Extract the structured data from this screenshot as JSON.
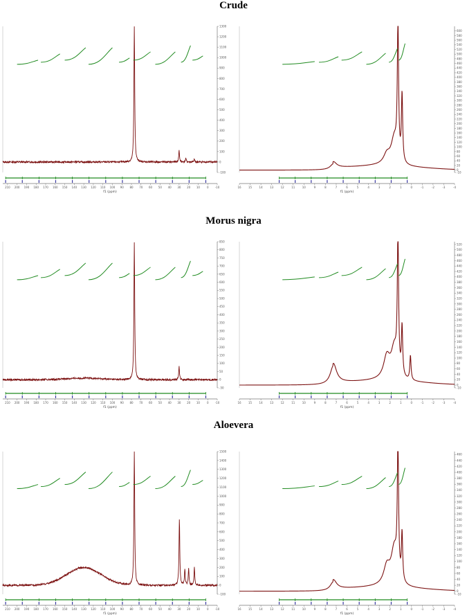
{
  "chart_data": [
    {
      "type": "line",
      "group": "Crude",
      "xlabel": "f1 (ppm)",
      "x_reversed": true,
      "xlim": [
        -10,
        215
      ],
      "ylim": [
        -100,
        1300
      ],
      "x_ticks": [
        210,
        200,
        190,
        180,
        170,
        160,
        150,
        140,
        130,
        120,
        110,
        100,
        90,
        80,
        70,
        60,
        50,
        40,
        30,
        20,
        10,
        0,
        -10
      ],
      "y_ticks": [
        1300,
        1200,
        1100,
        1000,
        900,
        800,
        700,
        600,
        500,
        400,
        300,
        200,
        100,
        0,
        -100
      ],
      "peaks": [
        [
          77,
          1300
        ],
        [
          30,
          110
        ],
        [
          23,
          35
        ],
        [
          14,
          25
        ]
      ],
      "baseline": [],
      "bumps": []
    },
    {
      "type": "line",
      "group": "Crude",
      "xlabel": "f1 (ppm)",
      "x_reversed": true,
      "xlim": [
        -4,
        16
      ],
      "ylim": [
        -10,
        620
      ],
      "x_ticks": [
        16,
        15,
        14,
        13,
        12,
        11,
        10,
        9,
        8,
        7,
        6,
        5,
        4,
        3,
        2,
        1,
        0,
        -1,
        -2,
        -3,
        -4
      ],
      "y_ticks": [
        600,
        580,
        560,
        540,
        520,
        500,
        480,
        460,
        440,
        420,
        400,
        380,
        360,
        340,
        320,
        300,
        280,
        260,
        240,
        220,
        200,
        180,
        160,
        140,
        120,
        100,
        80,
        60,
        40,
        20,
        0,
        -10
      ],
      "peaks": [
        [
          1.26,
          575
        ],
        [
          0.88,
          290
        ]
      ],
      "bumps": [
        [
          7.26,
          25
        ],
        [
          2.3,
          40
        ],
        [
          1.6,
          110
        ]
      ]
    },
    {
      "type": "line",
      "group": "Morus nigra",
      "xlabel": "f1 (ppm)",
      "x_reversed": true,
      "xlim": [
        -10,
        215
      ],
      "ylim": [
        -50,
        850
      ],
      "x_ticks": [
        210,
        200,
        190,
        180,
        170,
        160,
        150,
        140,
        130,
        120,
        110,
        100,
        90,
        80,
        70,
        60,
        50,
        40,
        30,
        20,
        10,
        0,
        -10
      ],
      "y_ticks": [
        850,
        800,
        750,
        700,
        650,
        600,
        550,
        500,
        450,
        400,
        350,
        300,
        250,
        200,
        150,
        100,
        50,
        0,
        -50
      ],
      "peaks": [
        [
          77,
          850
        ],
        [
          30,
          80
        ]
      ],
      "bumps": [
        [
          130,
          10
        ]
      ]
    },
    {
      "type": "line",
      "group": "Morus nigra",
      "xlabel": "f1 (ppm)",
      "x_reversed": true,
      "xlim": [
        -4,
        16
      ],
      "ylim": [
        -10,
        530
      ],
      "x_ticks": [
        16,
        15,
        14,
        13,
        12,
        11,
        10,
        9,
        8,
        7,
        6,
        5,
        4,
        3,
        2,
        1,
        0,
        -1,
        -2,
        -3,
        -4
      ],
      "y_ticks": [
        520,
        500,
        480,
        460,
        440,
        420,
        400,
        380,
        360,
        340,
        320,
        300,
        280,
        260,
        240,
        220,
        200,
        180,
        160,
        140,
        120,
        100,
        80,
        60,
        40,
        20,
        0,
        -10
      ],
      "peaks": [
        [
          1.26,
          500
        ],
        [
          0.88,
          180
        ],
        [
          0.1,
          90
        ]
      ],
      "bumps": [
        [
          7.26,
          70
        ],
        [
          2.3,
          80
        ],
        [
          1.6,
          110
        ]
      ]
    },
    {
      "type": "line",
      "group": "Aloevera",
      "xlabel": "f1 (ppm)",
      "x_reversed": true,
      "xlim": [
        -10,
        215
      ],
      "ylim": [
        -100,
        1500
      ],
      "x_ticks": [
        210,
        200,
        190,
        180,
        170,
        160,
        150,
        140,
        130,
        120,
        110,
        100,
        90,
        80,
        70,
        60,
        50,
        40,
        30,
        20,
        10,
        0,
        -10
      ],
      "y_ticks": [
        1500,
        1400,
        1300,
        1200,
        1100,
        1000,
        900,
        800,
        700,
        600,
        500,
        400,
        300,
        200,
        100,
        0,
        -100
      ],
      "peaks": [
        [
          77,
          1500
        ],
        [
          29.7,
          750
        ],
        [
          24,
          170
        ],
        [
          20,
          190
        ],
        [
          14,
          200
        ]
      ],
      "bumps": [
        [
          130,
          200
        ]
      ]
    },
    {
      "type": "line",
      "group": "Aloevera",
      "xlabel": "f1 (ppm)",
      "x_reversed": true,
      "xlim": [
        -4,
        16
      ],
      "ylim": [
        -10,
        470
      ],
      "x_ticks": [
        16,
        15,
        14,
        13,
        12,
        11,
        10,
        9,
        8,
        7,
        6,
        5,
        4,
        3,
        2,
        1,
        0,
        -1,
        -2,
        -3,
        -4
      ],
      "y_ticks": [
        460,
        440,
        420,
        400,
        380,
        360,
        340,
        320,
        300,
        280,
        260,
        240,
        220,
        200,
        180,
        160,
        140,
        120,
        100,
        80,
        60,
        40,
        20,
        0,
        -10
      ],
      "peaks": [
        [
          1.26,
          440
        ],
        [
          0.88,
          160
        ]
      ],
      "bumps": [
        [
          7.26,
          30
        ],
        [
          2.3,
          60
        ],
        [
          1.6,
          120
        ]
      ]
    }
  ],
  "titles": {
    "crude": "Crude",
    "morus": "Morus nigra",
    "aloe": "Aloevera"
  },
  "colors": {
    "spectrum": "#7b1010",
    "integral": "#1f8a1f",
    "label": "#3a3aa0",
    "axis": "#777777"
  }
}
